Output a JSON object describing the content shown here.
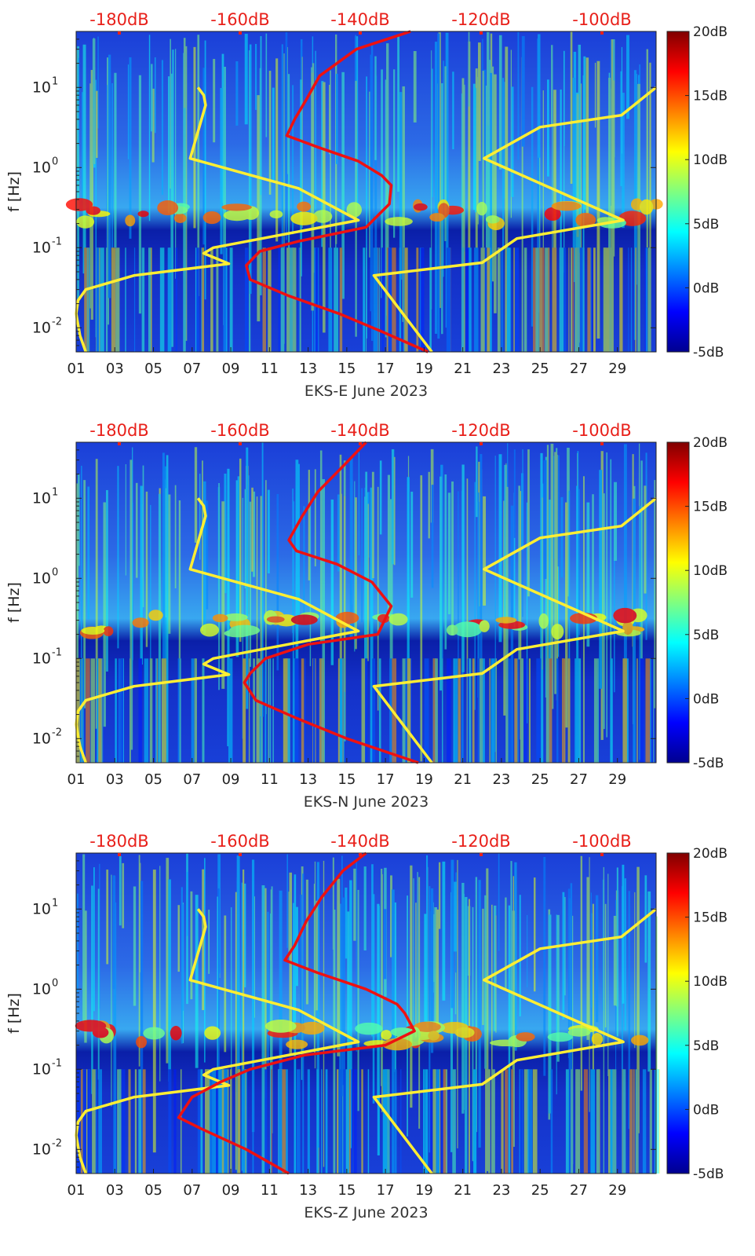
{
  "chart_data": [
    {
      "type": "heatmap",
      "xlabel": "EKS-E June 2023",
      "ylabel": "f [Hz]",
      "x_tick_labels": [
        "01",
        "03",
        "05",
        "07",
        "09",
        "11",
        "13",
        "15",
        "17",
        "19",
        "21",
        "23",
        "25",
        "27",
        "29"
      ],
      "y_tick_labels": [
        "10^-2",
        "10^-1",
        "10^0",
        "10^1"
      ],
      "top_tick_labels": [
        "-180dB",
        "-160dB",
        "-140dB",
        "-120dB",
        "-100dB"
      ],
      "colorbar": {
        "ticks": [
          "20dB",
          "15dB",
          "10dB",
          "5dB",
          "0dB",
          "-5dB"
        ],
        "range": [
          -5,
          20
        ],
        "colormap": "jet"
      },
      "y_scale": "log",
      "ylim_hz": [
        0.005,
        50
      ],
      "xlim_days": [
        1,
        31
      ],
      "series": [
        {
          "color": "#ffee33",
          "points": [
            [
              7.3,
              10
            ],
            [
              7.6,
              8
            ],
            [
              7.7,
              6
            ],
            [
              6.9,
              1.3
            ],
            [
              12.5,
              0.55
            ],
            [
              15.6,
              0.22
            ],
            [
              8.1,
              0.1
            ],
            [
              7.6,
              0.085
            ],
            [
              8.9,
              0.063
            ],
            [
              4.0,
              0.045
            ],
            [
              1.5,
              0.03
            ],
            [
              1.1,
              0.022
            ],
            [
              1.0,
              0.015
            ],
            [
              1.2,
              0.008
            ],
            [
              1.5,
              0.005
            ]
          ]
        },
        {
          "color": "#ffee33",
          "points": [
            [
              19.4,
              0.005
            ],
            [
              16.4,
              0.045
            ],
            [
              22.0,
              0.065
            ],
            [
              23.8,
              0.13
            ],
            [
              29.3,
              0.22
            ],
            [
              22.1,
              1.3
            ],
            [
              25.0,
              3.2
            ],
            [
              29.2,
              4.5
            ],
            [
              31.0,
              10
            ]
          ]
        },
        {
          "color": "#ee1111",
          "points": [
            [
              18.3,
              50
            ],
            [
              15.5,
              30
            ],
            [
              13.6,
              14
            ],
            [
              12.9,
              7
            ],
            [
              12.3,
              4
            ],
            [
              11.9,
              2.5
            ],
            [
              13.5,
              1.8
            ],
            [
              15.6,
              1.2
            ],
            [
              16.8,
              0.8
            ],
            [
              17.3,
              0.6
            ],
            [
              17.2,
              0.35
            ],
            [
              16.0,
              0.18
            ],
            [
              12.5,
              0.12
            ],
            [
              10.5,
              0.09
            ],
            [
              9.8,
              0.06
            ],
            [
              10.0,
              0.04
            ],
            [
              12.0,
              0.025
            ],
            [
              14.6,
              0.015
            ],
            [
              16.8,
              0.009
            ],
            [
              19.2,
              0.005
            ]
          ]
        }
      ]
    },
    {
      "type": "heatmap",
      "xlabel": "EKS-N June 2023",
      "ylabel": "f [Hz]",
      "x_tick_labels": [
        "01",
        "03",
        "05",
        "07",
        "09",
        "11",
        "13",
        "15",
        "17",
        "19",
        "21",
        "23",
        "25",
        "27",
        "29"
      ],
      "y_tick_labels": [
        "10^-2",
        "10^-1",
        "10^0",
        "10^1"
      ],
      "top_tick_labels": [
        "-180dB",
        "-160dB",
        "-140dB",
        "-120dB",
        "-100dB"
      ],
      "colorbar": {
        "ticks": [
          "20dB",
          "15dB",
          "10dB",
          "5dB",
          "0dB",
          "-5dB"
        ],
        "range": [
          -5,
          20
        ],
        "colormap": "jet"
      },
      "y_scale": "log",
      "ylim_hz": [
        0.005,
        50
      ],
      "xlim_days": [
        1,
        31
      ],
      "series": [
        {
          "color": "#ffee33",
          "points": [
            [
              7.3,
              10
            ],
            [
              7.6,
              8
            ],
            [
              7.7,
              6
            ],
            [
              6.9,
              1.3
            ],
            [
              12.5,
              0.55
            ],
            [
              15.6,
              0.22
            ],
            [
              8.1,
              0.1
            ],
            [
              7.6,
              0.085
            ],
            [
              8.9,
              0.063
            ],
            [
              4.0,
              0.045
            ],
            [
              1.5,
              0.03
            ],
            [
              1.1,
              0.022
            ],
            [
              1.0,
              0.015
            ],
            [
              1.2,
              0.008
            ],
            [
              1.5,
              0.005
            ]
          ]
        },
        {
          "color": "#ffee33",
          "points": [
            [
              19.4,
              0.005
            ],
            [
              16.4,
              0.045
            ],
            [
              22.0,
              0.065
            ],
            [
              23.8,
              0.13
            ],
            [
              29.3,
              0.22
            ],
            [
              22.1,
              1.3
            ],
            [
              25.0,
              3.2
            ],
            [
              29.2,
              4.5
            ],
            [
              31.0,
              10
            ]
          ]
        },
        {
          "color": "#ee1111",
          "points": [
            [
              16.0,
              50
            ],
            [
              14.8,
              25
            ],
            [
              13.5,
              12
            ],
            [
              12.7,
              6
            ],
            [
              12.0,
              3
            ],
            [
              12.4,
              2.2
            ],
            [
              14.5,
              1.5
            ],
            [
              16.3,
              0.9
            ],
            [
              17.3,
              0.45
            ],
            [
              16.6,
              0.2
            ],
            [
              13.0,
              0.15
            ],
            [
              10.8,
              0.1
            ],
            [
              10.0,
              0.065
            ],
            [
              9.7,
              0.05
            ],
            [
              10.3,
              0.03
            ],
            [
              12.4,
              0.018
            ],
            [
              15.0,
              0.01
            ],
            [
              18.7,
              0.005
            ]
          ]
        }
      ]
    },
    {
      "type": "heatmap",
      "xlabel": "EKS-Z June 2023",
      "ylabel": "f [Hz]",
      "x_tick_labels": [
        "01",
        "03",
        "05",
        "07",
        "09",
        "11",
        "13",
        "15",
        "17",
        "19",
        "21",
        "23",
        "25",
        "27",
        "29"
      ],
      "y_tick_labels": [
        "10^-2",
        "10^-1",
        "10^0",
        "10^1"
      ],
      "top_tick_labels": [
        "-180dB",
        "-160dB",
        "-140dB",
        "-120dB",
        "-100dB"
      ],
      "colorbar": {
        "ticks": [
          "20dB",
          "15dB",
          "10dB",
          "5dB",
          "0dB",
          "-5dB"
        ],
        "range": [
          -5,
          20
        ],
        "colormap": "jet"
      },
      "y_scale": "log",
      "ylim_hz": [
        0.005,
        50
      ],
      "xlim_days": [
        1,
        31
      ],
      "series": [
        {
          "color": "#ffee33",
          "points": [
            [
              7.3,
              10
            ],
            [
              7.6,
              8
            ],
            [
              7.7,
              6
            ],
            [
              6.9,
              1.3
            ],
            [
              12.5,
              0.55
            ],
            [
              15.6,
              0.22
            ],
            [
              8.1,
              0.1
            ],
            [
              7.6,
              0.085
            ],
            [
              8.9,
              0.063
            ],
            [
              4.0,
              0.045
            ],
            [
              1.5,
              0.03
            ],
            [
              1.1,
              0.022
            ],
            [
              1.0,
              0.015
            ],
            [
              1.2,
              0.008
            ],
            [
              1.5,
              0.005
            ]
          ]
        },
        {
          "color": "#ffee33",
          "points": [
            [
              19.4,
              0.005
            ],
            [
              16.4,
              0.045
            ],
            [
              22.0,
              0.065
            ],
            [
              23.8,
              0.13
            ],
            [
              29.3,
              0.22
            ],
            [
              22.1,
              1.3
            ],
            [
              25.0,
              3.2
            ],
            [
              29.2,
              4.5
            ],
            [
              31.0,
              10
            ]
          ]
        },
        {
          "color": "#ee1111",
          "points": [
            [
              16.0,
              50
            ],
            [
              14.8,
              30
            ],
            [
              13.7,
              14
            ],
            [
              12.9,
              7
            ],
            [
              12.3,
              3.5
            ],
            [
              11.8,
              2.3
            ],
            [
              13.5,
              1.6
            ],
            [
              16.0,
              1.0
            ],
            [
              17.6,
              0.65
            ],
            [
              18.0,
              0.5
            ],
            [
              18.5,
              0.3
            ],
            [
              17.0,
              0.2
            ],
            [
              12.8,
              0.15
            ],
            [
              10.0,
              0.1
            ],
            [
              8.5,
              0.07
            ],
            [
              7.0,
              0.045
            ],
            [
              6.3,
              0.025
            ],
            [
              7.5,
              0.018
            ],
            [
              9.8,
              0.01
            ],
            [
              12.0,
              0.005
            ]
          ]
        }
      ]
    }
  ]
}
